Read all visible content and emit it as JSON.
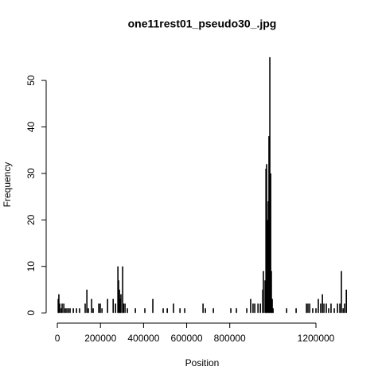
{
  "chart_data": {
    "type": "bar",
    "title": "one11rest01_pseudo30_.jpg",
    "x_label": "Position",
    "y_label": "Frequency",
    "color": "#000000",
    "x": [
      4000,
      7000,
      11000,
      18000,
      22000,
      30000,
      37000,
      44000,
      52000,
      59000,
      74000,
      89000,
      103000,
      129000,
      137000,
      144000,
      159000,
      166000,
      192000,
      199000,
      207000,
      233000,
      259000,
      270000,
      281000,
      284000,
      288000,
      292000,
      295000,
      303000,
      307000,
      314000,
      325000,
      362000,
      406000,
      443000,
      491000,
      510000,
      539000,
      569000,
      591000,
      676000,
      687000,
      724000,
      805000,
      831000,
      879000,
      897000,
      908000,
      916000,
      931000,
      942000,
      953000,
      956000,
      964000,
      968000,
      971000,
      975000,
      979000,
      982000,
      986000,
      990000,
      993000,
      997000,
      1001000,
      1064000,
      1108000,
      1156000,
      1163000,
      1171000,
      1185000,
      1200000,
      1211000,
      1222000,
      1230000,
      1237000,
      1248000,
      1259000,
      1270000,
      1285000,
      1300000,
      1311000,
      1318000,
      1326000,
      1333000,
      1341000
    ],
    "values": [
      3,
      4,
      2,
      1,
      2,
      2,
      1,
      1,
      1,
      1,
      1,
      1,
      1,
      2,
      5,
      1,
      3,
      1,
      2,
      2,
      1,
      3,
      3,
      2,
      10,
      7,
      5,
      3,
      4,
      10,
      2,
      2,
      1,
      1,
      1,
      3,
      1,
      1,
      2,
      1,
      1,
      2,
      1,
      1,
      1,
      1,
      1,
      3,
      2,
      2,
      2,
      2,
      5,
      9,
      7,
      31,
      32,
      20,
      24,
      38,
      55,
      30,
      9,
      3,
      1,
      1,
      1,
      2,
      2,
      2,
      1,
      1,
      3,
      2,
      4,
      2,
      2,
      1,
      2,
      1,
      2,
      2,
      9,
      1,
      2,
      5
    ],
    "xlim": [
      -52000,
      1392000
    ],
    "ylim": [
      -2.2,
      57.2
    ],
    "xticks": [
      0,
      200000,
      400000,
      600000,
      800000,
      1200000
    ],
    "yticks": [
      0,
      10,
      20,
      30,
      40,
      50
    ]
  }
}
